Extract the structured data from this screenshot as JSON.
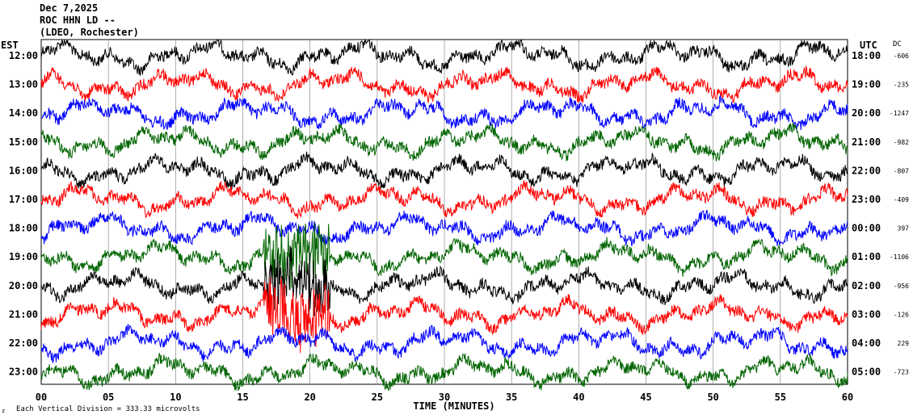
{
  "header": {
    "date": "Dec 7,2025",
    "station": "ROC HHN LD --",
    "network": "(LDEO, Rochester)"
  },
  "chart_data": {
    "type": "line",
    "title": "Dec 7,2025",
    "xlabel": "TIME (MINUTES)",
    "xlim": [
      0,
      60
    ],
    "x_ticks": [
      "00",
      "05",
      "10",
      "15",
      "20",
      "25",
      "30",
      "35",
      "40",
      "45",
      "50",
      "55",
      "60"
    ],
    "left_axis_label": "EST",
    "right_axis_label": "UTC",
    "dc_label": "DC",
    "footnote": "Each Vertical Division = 333.33 microvolts",
    "grid": true,
    "series_colors": [
      "#000000",
      "#ff0000",
      "#0000ff",
      "#006400"
    ],
    "rows": [
      {
        "est": "12:00",
        "utc": "18:00",
        "dc": "-606",
        "color": "#000000"
      },
      {
        "est": "13:00",
        "utc": "19:00",
        "dc": "-235",
        "color": "#ff0000"
      },
      {
        "est": "14:00",
        "utc": "20:00",
        "dc": "-1247",
        "color": "#0000ff"
      },
      {
        "est": "15:00",
        "utc": "21:00",
        "dc": "-982",
        "color": "#006400"
      },
      {
        "est": "16:00",
        "utc": "22:00",
        "dc": "-807",
        "color": "#000000"
      },
      {
        "est": "17:00",
        "utc": "23:00",
        "dc": "-409",
        "color": "#ff0000"
      },
      {
        "est": "18:00",
        "utc": "00:00",
        "dc": "397",
        "color": "#0000ff"
      },
      {
        "est": "19:00",
        "utc": "01:00",
        "dc": "-1106",
        "color": "#006400"
      },
      {
        "est": "20:00",
        "utc": "02:00",
        "dc": "-956",
        "color": "#000000"
      },
      {
        "est": "21:00",
        "utc": "03:00",
        "dc": "-126",
        "color": "#ff0000"
      },
      {
        "est": "22:00",
        "utc": "04:00",
        "dc": "229",
        "color": "#0000ff"
      },
      {
        "est": "23:00",
        "utc": "05:00",
        "dc": "-723",
        "color": "#006400"
      }
    ]
  }
}
